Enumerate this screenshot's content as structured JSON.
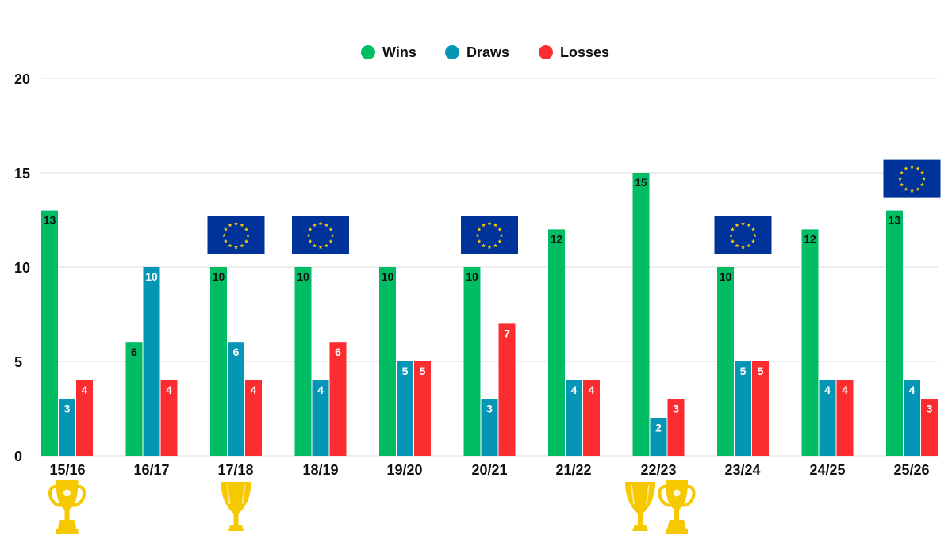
{
  "chart_data": {
    "type": "bar",
    "categories": [
      "15/16",
      "16/17",
      "17/18",
      "18/19",
      "19/20",
      "20/21",
      "21/22",
      "22/23",
      "23/24",
      "24/25",
      "25/26"
    ],
    "series": [
      {
        "name": "Wins",
        "color": "#00bd63",
        "label_color": "#111111",
        "values": [
          13,
          6,
          10,
          10,
          10,
          10,
          12,
          15,
          10,
          12,
          13
        ]
      },
      {
        "name": "Draws",
        "color": "#0496b4",
        "label_color": "#ffffff",
        "values": [
          3,
          10,
          6,
          4,
          5,
          3,
          4,
          2,
          5,
          4,
          4
        ]
      },
      {
        "name": "Losses",
        "color": "#fb2d30",
        "label_color": "#ffffff",
        "values": [
          4,
          4,
          4,
          6,
          5,
          7,
          4,
          3,
          5,
          4,
          3
        ]
      }
    ],
    "yticks": [
      "0",
      "5",
      "10",
      "15",
      "20"
    ],
    "ylim": [
      0,
      20
    ],
    "grid": true,
    "legend": "top-center",
    "eu_flag_seasons": [
      "17/18",
      "18/19",
      "20/21",
      "23/24",
      "25/26"
    ],
    "trophies": [
      {
        "season": "15/16",
        "icon": "cup-trophy-icon"
      },
      {
        "season": "17/18",
        "icon": "goblet-trophy-icon"
      },
      {
        "season": "22/23",
        "icon": "goblet-trophy-icon"
      },
      {
        "season": "22/23",
        "icon": "cup-trophy-icon"
      }
    ],
    "colors": {
      "eu_blue": "#003399",
      "eu_star": "#ffcc00",
      "trophy_gold": "#f5c800",
      "grid": "#dddddd"
    }
  }
}
